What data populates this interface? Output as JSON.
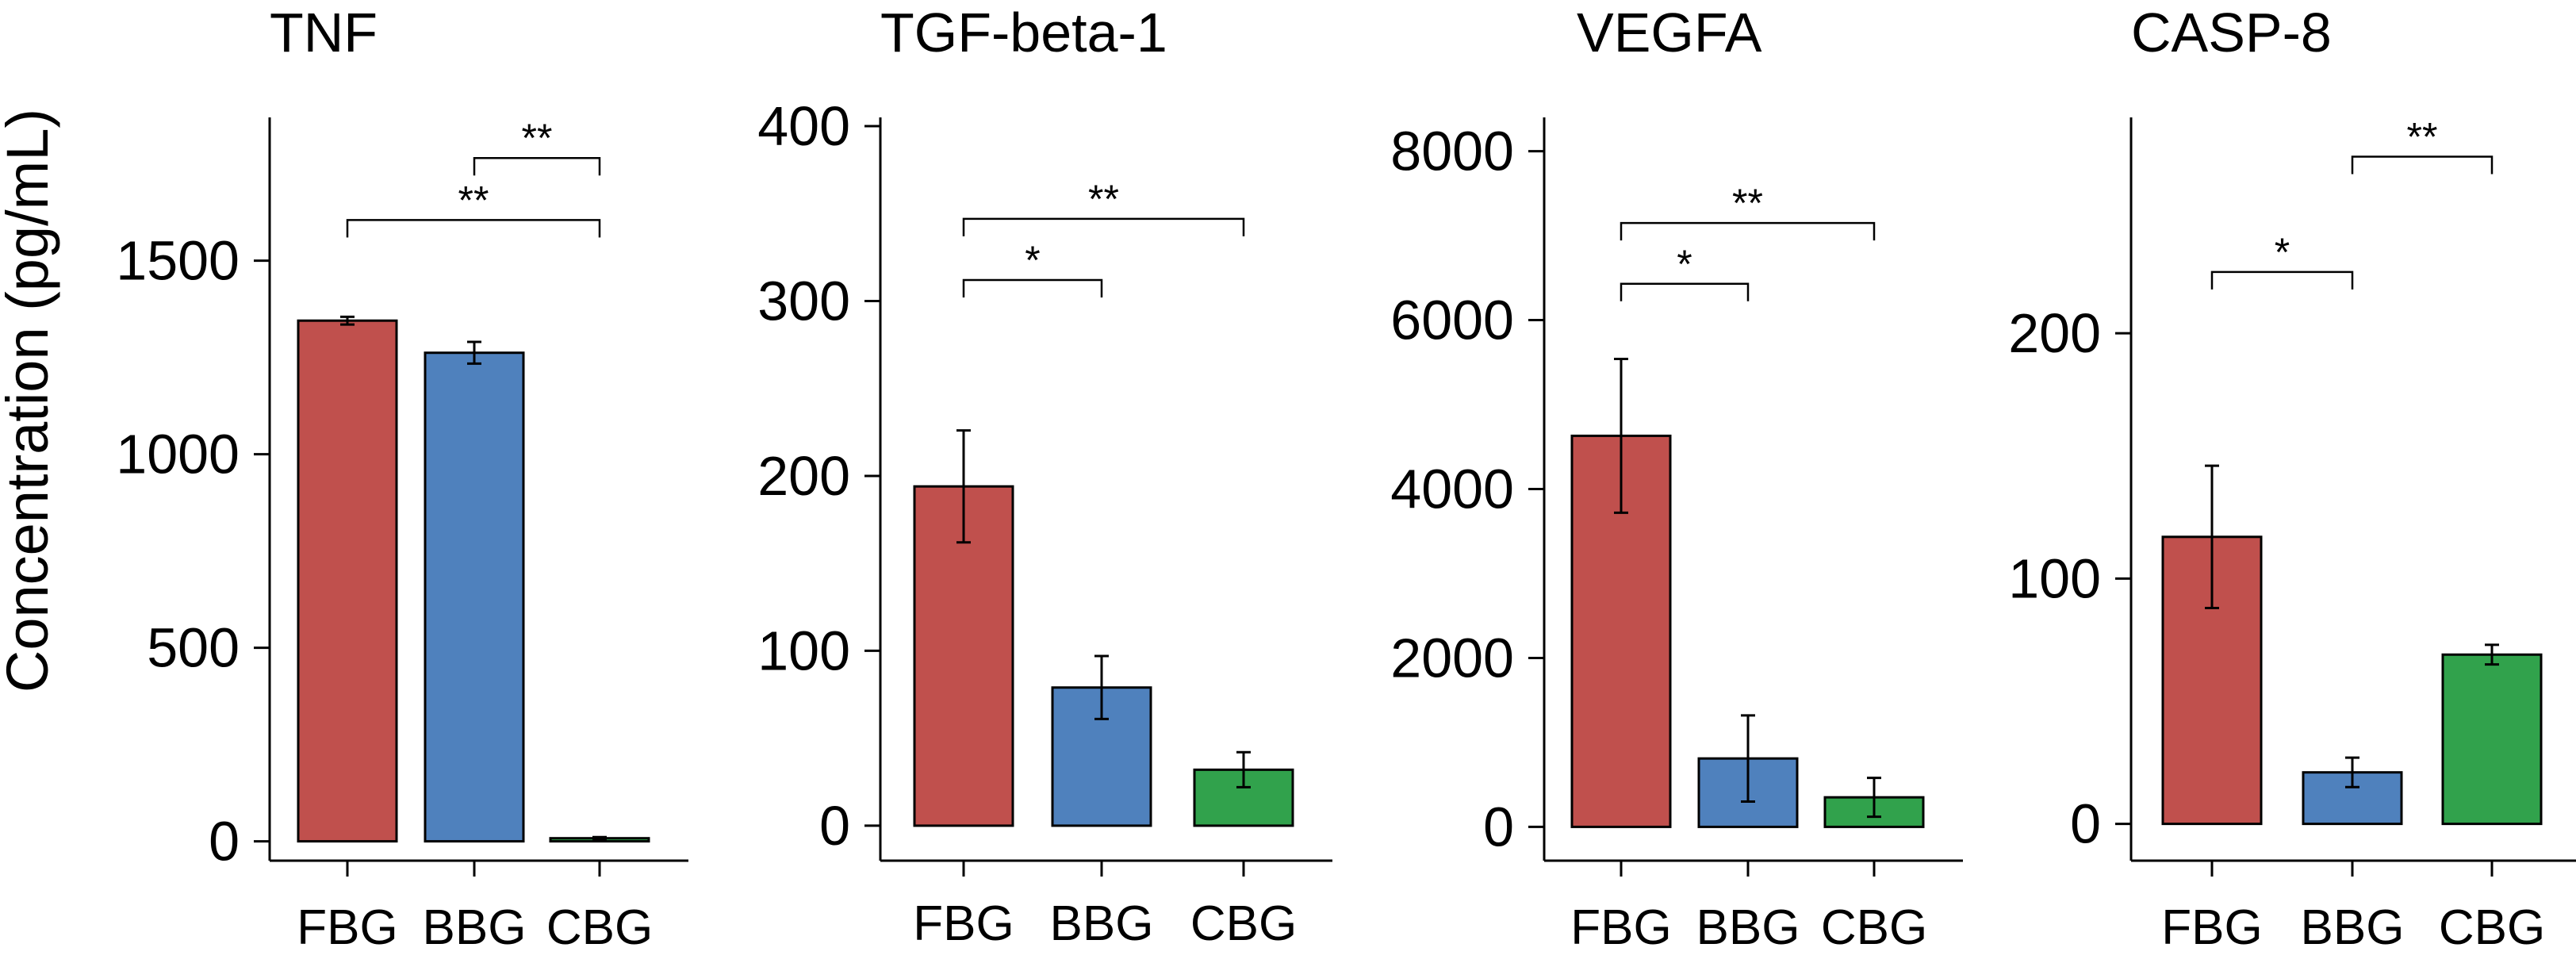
{
  "figure": {
    "ylabel": "Concentration (pg/mL)"
  },
  "colors": {
    "FBG": "#c0504d",
    "BBG": "#4f81bd",
    "CBG": "#31a24c"
  },
  "chart_data": [
    {
      "type": "bar",
      "title": "TNF",
      "ylabel": "Concentration (pg/mL)",
      "categories": [
        "FBG",
        "BBG",
        "CBG"
      ],
      "values": [
        1345,
        1262,
        8
      ],
      "errors": [
        10,
        28,
        3
      ],
      "ylim": [
        -50,
        1870
      ],
      "yticks": [
        0,
        500,
        1000,
        1500
      ],
      "significance": [
        {
          "from": "BBG",
          "to": "CBG",
          "label": "**",
          "y": 1765
        },
        {
          "from": "FBG",
          "to": "CBG",
          "label": "**",
          "y": 1605
        }
      ]
    },
    {
      "type": "bar",
      "title": "TGF-beta-1",
      "categories": [
        "FBG",
        "BBG",
        "CBG"
      ],
      "values": [
        194,
        79,
        32
      ],
      "errors": [
        32,
        18,
        10
      ],
      "ylim": [
        -20,
        405
      ],
      "yticks": [
        0,
        100,
        200,
        300,
        400
      ],
      "significance": [
        {
          "from": "FBG",
          "to": "CBG",
          "label": "**",
          "y": 347
        },
        {
          "from": "FBG",
          "to": "BBG",
          "label": "*",
          "y": 312
        }
      ]
    },
    {
      "type": "bar",
      "title": "VEGFA",
      "categories": [
        "FBG",
        "BBG",
        "CBG"
      ],
      "values": [
        4630,
        810,
        350
      ],
      "errors": [
        910,
        510,
        230
      ],
      "ylim": [
        -400,
        8400
      ],
      "yticks": [
        0,
        2000,
        4000,
        6000,
        8000
      ],
      "significance": [
        {
          "from": "FBG",
          "to": "CBG",
          "label": "**",
          "y": 7150
        },
        {
          "from": "FBG",
          "to": "BBG",
          "label": "*",
          "y": 6430
        }
      ]
    },
    {
      "type": "bar",
      "title": "CASP-8",
      "categories": [
        "FBG",
        "BBG",
        "CBG"
      ],
      "values": [
        117,
        21,
        69
      ],
      "errors": [
        29,
        6,
        4
      ],
      "ylim": [
        -15,
        288
      ],
      "yticks": [
        0,
        100,
        200
      ],
      "significance": [
        {
          "from": "BBG",
          "to": "CBG",
          "label": "**",
          "y": 272
        },
        {
          "from": "FBG",
          "to": "BBG",
          "label": "*",
          "y": 225
        }
      ]
    }
  ]
}
